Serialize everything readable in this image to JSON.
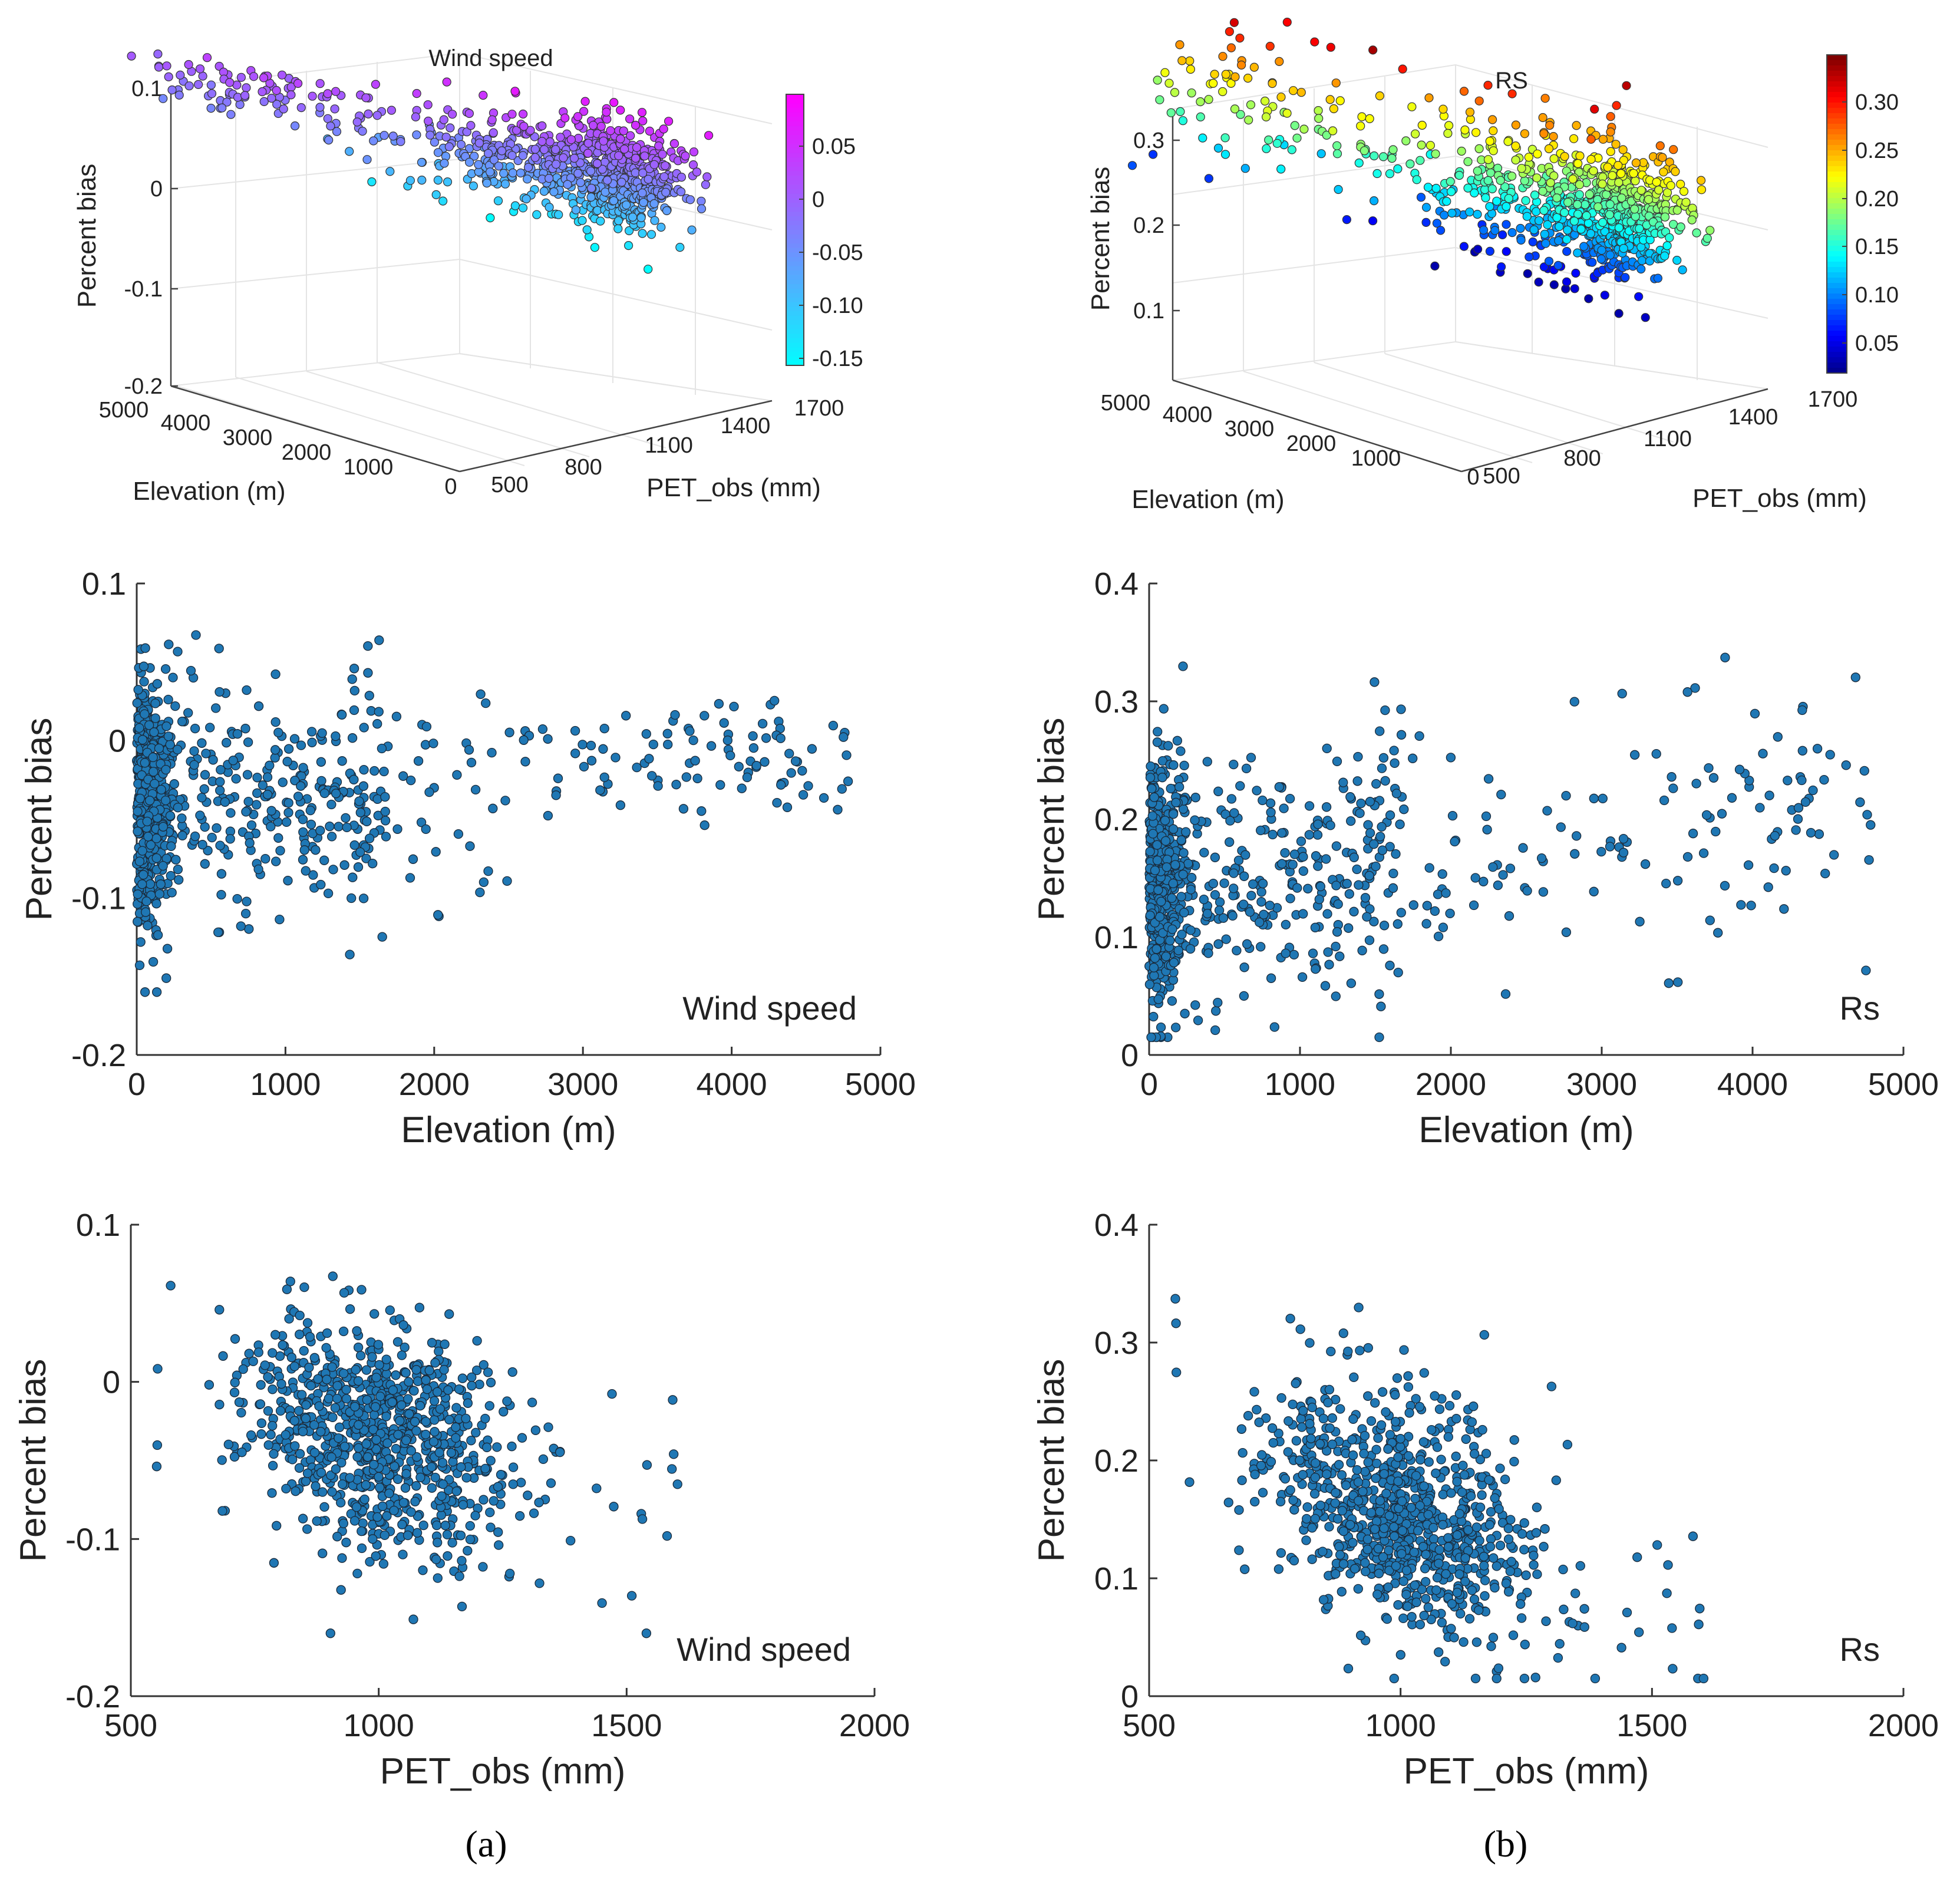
{
  "captions": [
    "(a)",
    "(b)"
  ],
  "chart_data": [
    {
      "id": "a-3d",
      "type": "scatter3d",
      "title": "Wind speed",
      "xlabel": "Elevation (m)",
      "ylabel": "PET_obs (mm)",
      "zlabel": "Percent bias",
      "elev_ticks": [
        "5000",
        "4000",
        "3000",
        "2000",
        "1000",
        "0"
      ],
      "pet_ticks": [
        "500",
        "800",
        "1100",
        "1400",
        "1700"
      ],
      "z_ticks": [
        "0.1",
        "0",
        "-0.1",
        "-0.2"
      ],
      "colorbar_ticks": [
        "0.05",
        "0",
        "-0.05",
        "-0.10",
        "-0.15"
      ],
      "colormap": "cool",
      "point_count": 900,
      "zlim": [
        -0.2,
        0.1
      ],
      "clim": [
        -0.16,
        0.09
      ]
    },
    {
      "id": "b-3d",
      "type": "scatter3d",
      "title": "RS",
      "xlabel": "Elevation (m)",
      "ylabel": "PET_obs (mm)",
      "zlabel": "Percent bias",
      "elev_ticks": [
        "5000",
        "4000",
        "3000",
        "2000",
        "1000",
        "0"
      ],
      "pet_ticks": [
        "500",
        "800",
        "1100",
        "1400",
        "1700"
      ],
      "z_ticks": [
        "0.3",
        "0.2",
        "0.1"
      ],
      "colorbar_ticks": [
        "0.30",
        "0.25",
        "0.20",
        "0.15",
        "0.10",
        "0.05"
      ],
      "colormap": "jet",
      "point_count": 900,
      "zlim": [
        0,
        0.35
      ],
      "clim": [
        0,
        0.35
      ]
    },
    {
      "id": "a-elev",
      "type": "scatter",
      "annotation": "Wind speed",
      "xlabel": "Elevation (m)",
      "ylabel": "Percent bias",
      "xlim": [
        0,
        5000
      ],
      "ylim": [
        -0.2,
        0.1
      ],
      "xticks": [
        "0",
        "1000",
        "2000",
        "3000",
        "4000",
        "5000"
      ],
      "yticks": [
        "0.1",
        "0",
        "-0.1",
        "-0.2"
      ],
      "point_color": "#1f77b4",
      "point_count": 900
    },
    {
      "id": "b-elev",
      "type": "scatter",
      "annotation": "Rs",
      "xlabel": "Elevation (m)",
      "ylabel": "Percent bias",
      "xlim": [
        0,
        5000
      ],
      "ylim": [
        0,
        0.4
      ],
      "xticks": [
        "0",
        "1000",
        "2000",
        "3000",
        "4000",
        "5000"
      ],
      "yticks": [
        "0.4",
        "0.3",
        "0.2",
        "0.1",
        "0"
      ],
      "point_color": "#1f77b4",
      "point_count": 900
    },
    {
      "id": "a-pet",
      "type": "scatter",
      "annotation": "Wind speed",
      "xlabel": "PET_obs (mm)",
      "ylabel": "Percent bias",
      "xlim": [
        500,
        2000
      ],
      "ylim": [
        -0.2,
        0.1
      ],
      "xticks": [
        "500",
        "1000",
        "1500",
        "2000"
      ],
      "yticks": [
        "0.1",
        "0",
        "-0.1",
        "-0.2"
      ],
      "point_color": "#1f77b4",
      "point_count": 900
    },
    {
      "id": "b-pet",
      "type": "scatter",
      "annotation": "Rs",
      "xlabel": "PET_obs (mm)",
      "ylabel": "Percent bias",
      "xlim": [
        500,
        2000
      ],
      "ylim": [
        0,
        0.4
      ],
      "xticks": [
        "500",
        "1000",
        "1500",
        "2000"
      ],
      "yticks": [
        "0.4",
        "0.3",
        "0.2",
        "0.1",
        "0"
      ],
      "point_color": "#1f77b4",
      "point_count": 900
    }
  ]
}
